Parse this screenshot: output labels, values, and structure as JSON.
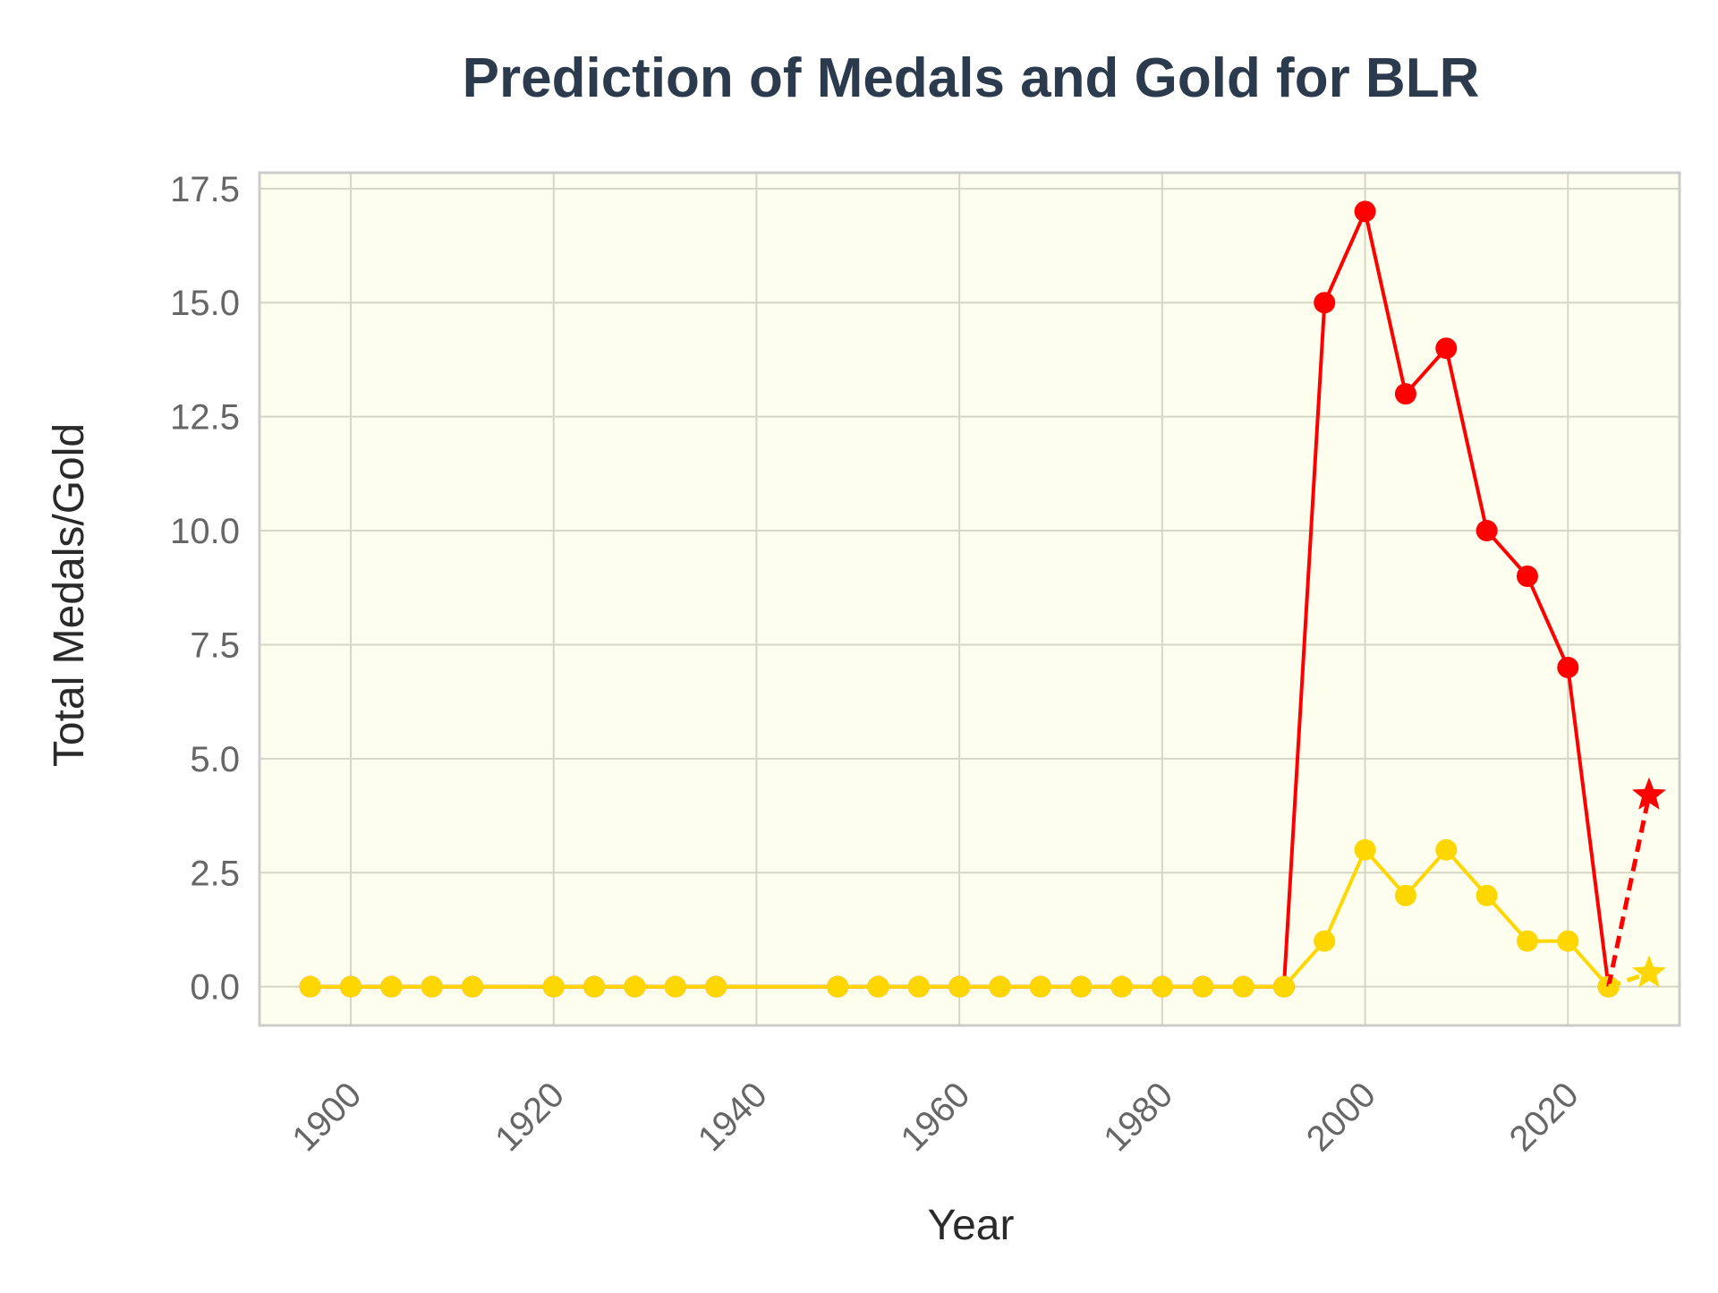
{
  "chart_data": {
    "type": "line",
    "title": "Prediction of Medals and Gold for BLR",
    "xlabel": "Year",
    "ylabel": "Total Medals/Gold",
    "xlim": [
      1891,
      2031
    ],
    "ylim": [
      -0.85,
      17.85
    ],
    "xticks": [
      1900,
      1920,
      1940,
      1960,
      1980,
      2000,
      2020
    ],
    "yticks": [
      0.0,
      2.5,
      5.0,
      7.5,
      10.0,
      12.5,
      15.0,
      17.5
    ],
    "ytick_labels": [
      "0.0",
      "2.5",
      "5.0",
      "7.5",
      "10.0",
      "12.5",
      "15.0",
      "17.5"
    ],
    "grid": true,
    "background_color": "#fdfeee",
    "series": [
      {
        "color": "#ff0000",
        "x": [
          1896,
          1900,
          1904,
          1908,
          1912,
          1920,
          1924,
          1928,
          1932,
          1936,
          1948,
          1952,
          1956,
          1960,
          1964,
          1968,
          1972,
          1976,
          1980,
          1984,
          1988,
          1992,
          1996,
          2000,
          2004,
          2008,
          2012,
          2016,
          2020,
          2024
        ],
        "values": [
          0,
          0,
          0,
          0,
          0,
          0,
          0,
          0,
          0,
          0,
          0,
          0,
          0,
          0,
          0,
          0,
          0,
          0,
          0,
          0,
          0,
          0,
          15,
          17,
          13,
          14,
          10,
          9,
          7,
          0
        ]
      },
      {
        "color": "#ffd700",
        "x": [
          1896,
          1900,
          1904,
          1908,
          1912,
          1920,
          1924,
          1928,
          1932,
          1936,
          1948,
          1952,
          1956,
          1960,
          1964,
          1968,
          1972,
          1976,
          1980,
          1984,
          1988,
          1992,
          1996,
          2000,
          2004,
          2008,
          2012,
          2016,
          2020,
          2024
        ],
        "values": [
          0,
          0,
          0,
          0,
          0,
          0,
          0,
          0,
          0,
          0,
          0,
          0,
          0,
          0,
          0,
          0,
          0,
          0,
          0,
          0,
          0,
          0,
          1,
          3,
          2,
          3,
          2,
          1,
          1,
          0
        ]
      }
    ],
    "predictions": [
      {
        "color": "#ff0000",
        "from": [
          2024,
          0
        ],
        "to": [
          2028,
          4.2
        ],
        "marker": "star"
      },
      {
        "color": "#ffd700",
        "from": [
          2024,
          0
        ],
        "to": [
          2028,
          0.3
        ],
        "marker": "star"
      }
    ]
  }
}
